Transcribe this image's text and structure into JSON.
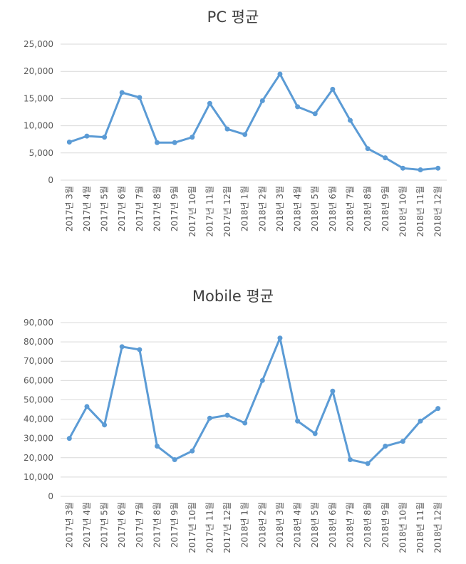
{
  "chart_data": [
    {
      "type": "line",
      "title": "PC 평균",
      "categories": [
        "2017년 3월",
        "2017년 4월",
        "2017년 5월",
        "2017년 6월",
        "2017년 7월",
        "2017년 8월",
        "2017년 9월",
        "2017년 10월",
        "2017년 11월",
        "2017년 12월",
        "2018년 1월",
        "2018년 2월",
        "2018년 3월",
        "2018년 4월",
        "2018년 5월",
        "2018년 6월",
        "2018년 7월",
        "2018년 8월",
        "2018년 9월",
        "2018년 10월",
        "2018년 11월",
        "2018년 12월"
      ],
      "values": [
        7000,
        8100,
        7900,
        16100,
        15200,
        6900,
        6900,
        7900,
        14100,
        9400,
        8400,
        14600,
        19500,
        13500,
        12200,
        16700,
        11000,
        5800,
        4100,
        2200,
        1900,
        2200
      ],
      "ylim": [
        0,
        25000
      ],
      "yticks": [
        "0",
        "5,000",
        "10,000",
        "15,000",
        "20,000",
        "25,000"
      ],
      "grid": true,
      "color": "#5b9bd5"
    },
    {
      "type": "line",
      "title": "Mobile 평균",
      "categories": [
        "2017년 3월",
        "2017년 4월",
        "2017년 5월",
        "2017년 6월",
        "2017년 7월",
        "2017년 8월",
        "2017년 9월",
        "2017년 10월",
        "2017년 11월",
        "2017년 12월",
        "2018년 1월",
        "2018년 2월",
        "2018년 3월",
        "2018년 4월",
        "2018년 5월",
        "2018년 6월",
        "2018년 7월",
        "2018년 8월",
        "2018년 9월",
        "2018년 10월",
        "2018년 11월",
        "2018년 12월"
      ],
      "values": [
        30000,
        46500,
        37000,
        77500,
        76000,
        26000,
        19000,
        23500,
        40500,
        42000,
        38000,
        60000,
        82000,
        39000,
        32500,
        54500,
        19000,
        17000,
        26000,
        28500,
        39000,
        45500
      ],
      "ylim": [
        0,
        90000
      ],
      "yticks": [
        "0",
        "10,000",
        "20,000",
        "30,000",
        "40,000",
        "50,000",
        "60,000",
        "70,000",
        "80,000",
        "90,000"
      ],
      "grid": true,
      "color": "#5b9bd5"
    }
  ]
}
